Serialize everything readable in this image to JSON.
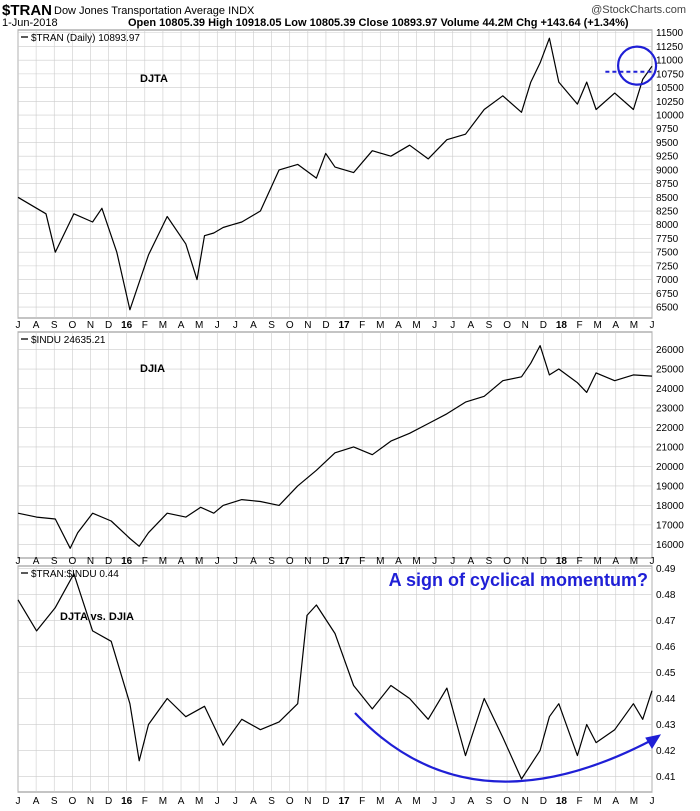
{
  "header": {
    "symbol": "$TRAN",
    "name": "Dow Jones Transportation Average INDX",
    "date": "1-Jun-2018",
    "quote": "Open 10805.39  High 10918.05  Low 10805.39  Close 10893.97  Volume 44.2M  Chg +143.64 (+1.34%)",
    "brand": "@StockCharts.com"
  },
  "month_labels": [
    "J",
    "A",
    "S",
    "O",
    "N",
    "D",
    "16",
    "F",
    "M",
    "A",
    "M",
    "J",
    "J",
    "A",
    "S",
    "O",
    "N",
    "D",
    "17",
    "F",
    "M",
    "A",
    "M",
    "J",
    "J",
    "A",
    "S",
    "O",
    "N",
    "D",
    "18",
    "F",
    "M",
    "A",
    "M",
    "J"
  ],
  "chart_data": [
    {
      "type": "line",
      "legend": "$TRAN (Daily) 10893.97",
      "annotation": "DJTA",
      "ylim": [
        6300,
        11550
      ],
      "ticks": [
        6500,
        6750,
        7000,
        7250,
        7500,
        7750,
        8000,
        8250,
        8500,
        8750,
        9000,
        9250,
        9500,
        9750,
        10000,
        10250,
        10500,
        10750,
        11000,
        11250,
        11500
      ],
      "x": [
        0,
        1.5,
        2,
        3,
        4,
        4.5,
        5.3,
        6,
        6.5,
        7,
        8,
        9,
        9.6,
        10,
        10.5,
        11,
        11.5,
        12,
        13,
        14,
        15,
        16,
        16.5,
        17,
        18,
        19,
        20,
        21,
        22,
        23,
        24,
        25,
        26,
        27,
        27.5,
        28,
        28.5,
        29,
        30,
        30.5,
        31,
        32,
        33,
        33.5,
        34
      ],
      "values": [
        8500,
        8200,
        7500,
        8200,
        8050,
        8300,
        7500,
        6450,
        6950,
        7450,
        8150,
        7650,
        7000,
        7800,
        7850,
        7950,
        8000,
        8050,
        8250,
        9000,
        9100,
        8850,
        9300,
        9050,
        8950,
        9350,
        9250,
        9450,
        9200,
        9550,
        9650,
        10100,
        10350,
        10050,
        10600,
        10950,
        11400,
        10600,
        10200,
        10600,
        10100,
        10400,
        10100,
        10650,
        10890
      ],
      "reference_level": 10790
    },
    {
      "type": "line",
      "legend": "$INDU 24635.21",
      "annotation": "DJIA",
      "ylim": [
        15300,
        26900
      ],
      "ticks": [
        16000,
        17000,
        18000,
        19000,
        20000,
        21000,
        22000,
        23000,
        24000,
        25000,
        26000
      ],
      "x": [
        0,
        1,
        2,
        2.8,
        3.2,
        4,
        5,
        6,
        6.5,
        7,
        8,
        9,
        9.8,
        10.5,
        11,
        12,
        13,
        14,
        15,
        16,
        17,
        18,
        19,
        20,
        21,
        22,
        23,
        24,
        25,
        26,
        27,
        27.5,
        28,
        28.5,
        29,
        30,
        30.5,
        31,
        32,
        33,
        34
      ],
      "values": [
        17600,
        17400,
        17300,
        15800,
        16600,
        17600,
        17200,
        16300,
        15900,
        16600,
        17600,
        17400,
        17900,
        17600,
        18000,
        18300,
        18200,
        18000,
        19000,
        19800,
        20700,
        21000,
        20600,
        21300,
        21700,
        22200,
        22700,
        23300,
        23600,
        24400,
        24600,
        25300,
        26200,
        24700,
        25000,
        24300,
        23800,
        24800,
        24400,
        24700,
        24635
      ]
    },
    {
      "type": "line",
      "legend": "$TRAN:$INDU 0.44",
      "annotation": "DJTA vs. DJIA",
      "callout": "A sign of cyclical momentum?",
      "ylim": [
        0.404,
        0.491
      ],
      "ticks": [
        0.41,
        0.42,
        0.43,
        0.44,
        0.45,
        0.46,
        0.47,
        0.48,
        0.49
      ],
      "x": [
        0,
        1,
        2,
        3,
        4,
        5,
        6,
        6.5,
        7,
        8,
        9,
        10,
        11,
        12,
        13,
        14,
        15,
        15.5,
        16,
        17,
        18,
        19,
        20,
        21,
        22,
        23,
        24,
        25,
        26,
        27,
        28,
        28.5,
        29,
        30,
        30.5,
        31,
        32,
        33,
        33.5,
        34
      ],
      "values": [
        0.478,
        0.466,
        0.475,
        0.488,
        0.466,
        0.462,
        0.438,
        0.416,
        0.43,
        0.44,
        0.433,
        0.437,
        0.422,
        0.432,
        0.428,
        0.431,
        0.438,
        0.472,
        0.476,
        0.465,
        0.445,
        0.436,
        0.445,
        0.44,
        0.432,
        0.444,
        0.418,
        0.44,
        0.425,
        0.409,
        0.42,
        0.433,
        0.438,
        0.418,
        0.43,
        0.423,
        0.428,
        0.438,
        0.432,
        0.443
      ]
    }
  ],
  "colors": {
    "accent": "#1f1fd6",
    "grid": "#cccccc",
    "line": "#000000"
  }
}
